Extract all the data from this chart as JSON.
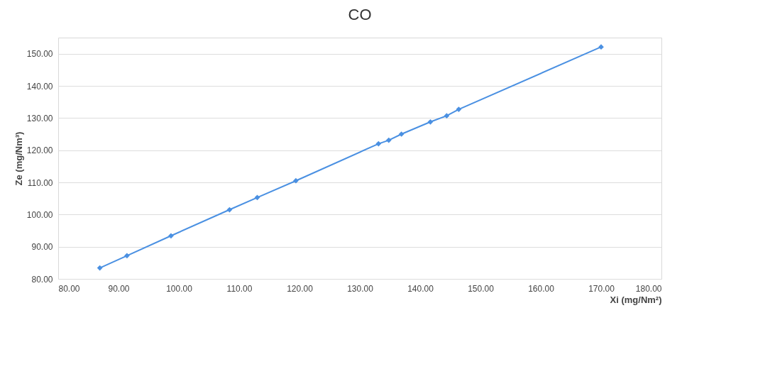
{
  "chart_data": {
    "type": "line",
    "title": "CO",
    "xlabel": "Xi (mg/Nm²)",
    "ylabel": "Ze (mg/Nm³)",
    "x": [
      86.9,
      91.4,
      98.7,
      108.4,
      113.0,
      119.4,
      133.1,
      134.8,
      136.9,
      141.7,
      144.4,
      146.4,
      170.0
    ],
    "series": [
      {
        "color": "#4a90e2",
        "values": [
          83.4,
          87.2,
          93.4,
          101.5,
          105.3,
          110.5,
          122.0,
          123.1,
          125.0,
          128.8,
          130.7,
          132.7,
          152.1
        ]
      }
    ],
    "xlim": [
      80,
      180
    ],
    "ylim": [
      80,
      155
    ],
    "xticks": [
      {
        "value": 80,
        "label": "80.00"
      },
      {
        "value": 90,
        "label": "90.00"
      },
      {
        "value": 100,
        "label": "100.00"
      },
      {
        "value": 110,
        "label": "110.00"
      },
      {
        "value": 120,
        "label": "120.00"
      },
      {
        "value": 130,
        "label": "130.00"
      },
      {
        "value": 140,
        "label": "140.00"
      },
      {
        "value": 150,
        "label": "150.00"
      },
      {
        "value": 160,
        "label": "160.00"
      },
      {
        "value": 170,
        "label": "170.00"
      },
      {
        "value": 180,
        "label": "180.00"
      }
    ],
    "yticks": [
      {
        "value": 80,
        "label": "80.00"
      },
      {
        "value": 90,
        "label": "90.00"
      },
      {
        "value": 100,
        "label": "100.00"
      },
      {
        "value": 110,
        "label": "110.00"
      },
      {
        "value": 120,
        "label": "120.00"
      },
      {
        "value": 130,
        "label": "130.00"
      },
      {
        "value": 140,
        "label": "140.00"
      },
      {
        "value": 150,
        "label": "150.00"
      }
    ],
    "grid": "y",
    "marker": "diamond",
    "line_style": "solid",
    "legend": false
  }
}
